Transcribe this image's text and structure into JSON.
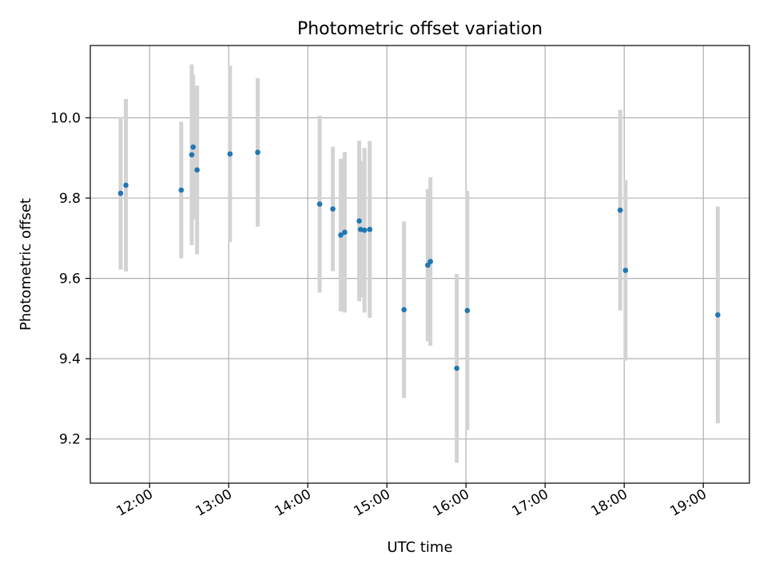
{
  "chart_data": {
    "type": "scatter",
    "title": "Photometric offset variation",
    "xlabel": "UTC time",
    "ylabel": "Photometric offset",
    "xlim": [
      "11:15",
      "19:35"
    ],
    "ylim": [
      9.09,
      10.18
    ],
    "grid": true,
    "xticks": [
      "12:00",
      "13:00",
      "14:00",
      "15:00",
      "16:00",
      "17:00",
      "18:00",
      "19:00"
    ],
    "yticks": [
      "9.2",
      "9.4",
      "9.6",
      "9.8",
      "10.0"
    ],
    "colors": {
      "points": "#1f77b4",
      "errorbars": "#d3d3d3",
      "grid": "#b0b0b0"
    },
    "points": [
      {
        "x": "11:38",
        "y": 9.812,
        "yerr": 0.19
      },
      {
        "x": "11:42",
        "y": 9.832,
        "yerr": 0.215
      },
      {
        "x": "12:24",
        "y": 9.82,
        "yerr": 0.17
      },
      {
        "x": "12:32",
        "y": 9.908,
        "yerr": 0.225
      },
      {
        "x": "12:33",
        "y": 9.927,
        "yerr": 0.18
      },
      {
        "x": "12:36",
        "y": 9.87,
        "yerr": 0.21
      },
      {
        "x": "13:01",
        "y": 9.91,
        "yerr": 0.22
      },
      {
        "x": "13:22",
        "y": 9.914,
        "yerr": 0.185
      },
      {
        "x": "14:09",
        "y": 9.785,
        "yerr": 0.22
      },
      {
        "x": "14:19",
        "y": 9.773,
        "yerr": 0.155
      },
      {
        "x": "14:25",
        "y": 9.708,
        "yerr": 0.19
      },
      {
        "x": "14:28",
        "y": 9.715,
        "yerr": 0.2
      },
      {
        "x": "14:39",
        "y": 9.743,
        "yerr": 0.2
      },
      {
        "x": "14:40",
        "y": 9.722,
        "yerr": 0.17
      },
      {
        "x": "14:43",
        "y": 9.72,
        "yerr": 0.205
      },
      {
        "x": "14:47",
        "y": 9.722,
        "yerr": 0.22
      },
      {
        "x": "15:13",
        "y": 9.522,
        "yerr": 0.22
      },
      {
        "x": "15:31",
        "y": 9.633,
        "yerr": 0.19
      },
      {
        "x": "15:33",
        "y": 9.642,
        "yerr": 0.21
      },
      {
        "x": "15:53",
        "y": 9.376,
        "yerr": 0.235
      },
      {
        "x": "16:01",
        "y": 9.52,
        "yerr": 0.298
      },
      {
        "x": "17:57",
        "y": 9.77,
        "yerr": 0.25
      },
      {
        "x": "18:01",
        "y": 9.62,
        "yerr": 0.225
      },
      {
        "x": "19:11",
        "y": 9.509,
        "yerr": 0.27
      }
    ]
  }
}
